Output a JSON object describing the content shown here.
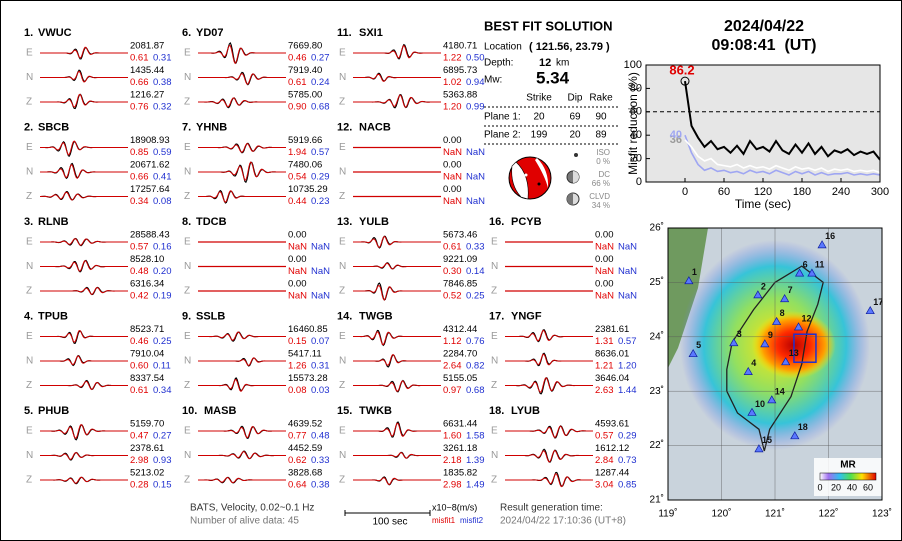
{
  "components": [
    "E",
    "N",
    "Z"
  ],
  "stations": [
    {
      "number": "1.",
      "name": "VWUC",
      "traces": [
        [
          "2081.87",
          "0.61",
          "0.31"
        ],
        [
          "1435.44",
          "0.66",
          "0.38"
        ],
        [
          "1216.27",
          "0.76",
          "0.32"
        ]
      ]
    },
    {
      "number": "2.",
      "name": "SBCB",
      "traces": [
        [
          "18908.93",
          "0.85",
          "0.59"
        ],
        [
          "20671.62",
          "0.66",
          "0.41"
        ],
        [
          "17257.64",
          "0.34",
          "0.08"
        ]
      ]
    },
    {
      "number": "3.",
      "name": "RLNB",
      "traces": [
        [
          "28588.43",
          "0.57",
          "0.16"
        ],
        [
          "8528.10",
          "0.48",
          "0.20"
        ],
        [
          "6316.34",
          "0.42",
          "0.19"
        ]
      ]
    },
    {
      "number": "4.",
      "name": "TPUB",
      "traces": [
        [
          "8523.71",
          "0.46",
          "0.25"
        ],
        [
          "7910.04",
          "0.60",
          "0.11"
        ],
        [
          "8337.54",
          "0.61",
          "0.34"
        ]
      ]
    },
    {
      "number": "5.",
      "name": "PHUB",
      "traces": [
        [
          "5159.70",
          "0.47",
          "0.27"
        ],
        [
          "2378.61",
          "2.98",
          "0.93"
        ],
        [
          "5213.02",
          "0.28",
          "0.15"
        ]
      ]
    },
    {
      "number": "6.",
      "name": "YD07",
      "traces": [
        [
          "7669.80",
          "0.46",
          "0.27"
        ],
        [
          "7919.40",
          "0.61",
          "0.24"
        ],
        [
          "5785.00",
          "0.90",
          "0.68"
        ]
      ]
    },
    {
      "number": "7.",
      "name": "YHNB",
      "traces": [
        [
          "5919.66",
          "1.94",
          "0.57"
        ],
        [
          "7480.06",
          "0.54",
          "0.29"
        ],
        [
          "10735.29",
          "0.44",
          "0.23"
        ]
      ]
    },
    {
      "number": "8.",
      "name": "TDCB",
      "traces": [
        [
          "0.00",
          "NaN",
          "NaN"
        ],
        [
          "0.00",
          "NaN",
          "NaN"
        ],
        [
          "0.00",
          "NaN",
          "NaN"
        ]
      ]
    },
    {
      "number": "9.",
      "name": "SSLB",
      "traces": [
        [
          "16460.85",
          "0.15",
          "0.07"
        ],
        [
          "5417.11",
          "1.26",
          "0.31"
        ],
        [
          "15573.28",
          "0.08",
          "0.03"
        ]
      ]
    },
    {
      "number": "10.",
      "name": "MASB",
      "traces": [
        [
          "4639.52",
          "0.77",
          "0.48"
        ],
        [
          "4452.59",
          "0.62",
          "0.33"
        ],
        [
          "3828.68",
          "0.64",
          "0.38"
        ]
      ]
    },
    {
      "number": "11.",
      "name": "SXI1",
      "traces": [
        [
          "4180.71",
          "1.22",
          "0.50"
        ],
        [
          "6895.73",
          "1.02",
          "0.94"
        ],
        [
          "5363.88",
          "1.20",
          "0.99"
        ]
      ]
    },
    {
      "number": "12.",
      "name": "NACB",
      "traces": [
        [
          "0.00",
          "NaN",
          "NaN"
        ],
        [
          "0.00",
          "NaN",
          "NaN"
        ],
        [
          "0.00",
          "NaN",
          "NaN"
        ]
      ]
    },
    {
      "number": "13.",
      "name": "YULB",
      "traces": [
        [
          "5673.46",
          "0.61",
          "0.33"
        ],
        [
          "9221.09",
          "0.30",
          "0.14"
        ],
        [
          "7846.85",
          "0.52",
          "0.25"
        ]
      ]
    },
    {
      "number": "14.",
      "name": "TWGB",
      "traces": [
        [
          "4312.44",
          "1.12",
          "0.76"
        ],
        [
          "2284.70",
          "2.64",
          "0.82"
        ],
        [
          "5155.05",
          "0.97",
          "0.68"
        ]
      ]
    },
    {
      "number": "15.",
      "name": "TWKB",
      "traces": [
        [
          "6631.44",
          "1.60",
          "1.58"
        ],
        [
          "3261.18",
          "2.18",
          "1.39"
        ],
        [
          "1835.82",
          "2.98",
          "1.49"
        ]
      ]
    },
    {
      "number": "16.",
      "name": "PCYB",
      "traces": [
        [
          "0.00",
          "NaN",
          "NaN"
        ],
        [
          "0.00",
          "NaN",
          "NaN"
        ],
        [
          "0.00",
          "NaN",
          "NaN"
        ]
      ]
    },
    {
      "number": "17.",
      "name": "YNGF",
      "traces": [
        [
          "2381.61",
          "1.31",
          "0.57"
        ],
        [
          "8636.01",
          "1.21",
          "1.20"
        ],
        [
          "3646.04",
          "2.63",
          "1.44"
        ]
      ]
    },
    {
      "number": "18.",
      "name": "LYUB",
      "traces": [
        [
          "4593.61",
          "0.57",
          "0.29"
        ],
        [
          "1612.12",
          "2.84",
          "0.73"
        ],
        [
          "1287.44",
          "3.04",
          "0.85"
        ]
      ]
    }
  ],
  "solution": {
    "title": "BEST FIT SOLUTION",
    "location_label": "Location",
    "location": "( 121.56, 23.79 )",
    "depth_label": "Depth:",
    "depth": "12",
    "depth_unit": "km",
    "mw_label": "Mw:",
    "mw": "5.34",
    "plane_header": [
      "Strike",
      "Dip",
      "Rake"
    ],
    "planes": [
      {
        "label": "Plane 1:",
        "values": [
          "20",
          "69",
          "90"
        ]
      },
      {
        "label": "Plane 2:",
        "values": [
          "199",
          "20",
          "89"
        ]
      }
    ],
    "decomposition": [
      {
        "name": "ISO",
        "percent": "0 %"
      },
      {
        "name": "DC",
        "percent": "66 %"
      },
      {
        "name": "CLVD",
        "percent": "34 %"
      }
    ]
  },
  "event_time": {
    "date": "2024/04/22",
    "time": "09:08:41  (UT)"
  },
  "chart_data": {
    "type": "line",
    "ylabel": "Misfit reduction (%)",
    "xlabel": "Time (sec)",
    "x": [
      0,
      10,
      20,
      30,
      40,
      50,
      60,
      70,
      80,
      90,
      100,
      110,
      120,
      130,
      140,
      150,
      160,
      170,
      180,
      190,
      200,
      210,
      220,
      230,
      240,
      250,
      260,
      270,
      280,
      290,
      300
    ],
    "series": [
      {
        "color": "#000000",
        "values": [
          86.2,
          48,
          38,
          30,
          35,
          28,
          30,
          25,
          31,
          24,
          35,
          28,
          30,
          26,
          35,
          27,
          24,
          32,
          25,
          33,
          24,
          30,
          22,
          27,
          25,
          28,
          23,
          26,
          24,
          26,
          19
        ]
      },
      {
        "color": "#ffffff",
        "values": [
          36,
          30,
          22,
          18,
          20,
          15,
          14,
          13,
          15,
          12,
          14,
          12,
          13,
          11,
          14,
          12,
          10,
          13,
          11,
          12,
          10,
          12,
          9,
          11,
          10,
          11,
          9,
          10,
          9,
          10,
          8
        ]
      },
      {
        "color": "#9fa6f2",
        "values": [
          40,
          25,
          15,
          10,
          12,
          9,
          10,
          8,
          9,
          7,
          10,
          8,
          9,
          7,
          10,
          8,
          6,
          9,
          7,
          9,
          6,
          8,
          6,
          7,
          7,
          8,
          6,
          7,
          6,
          7,
          6
        ]
      }
    ],
    "xlim": [
      -60,
      300
    ],
    "ylim": [
      0,
      100
    ],
    "xticks": [
      0,
      60,
      120,
      180,
      240,
      300
    ],
    "yticks": [
      0,
      20,
      40,
      60,
      80,
      100
    ],
    "reference_line": 60
  },
  "map": {
    "lonlim": [
      119,
      123
    ],
    "latlim": [
      21,
      26
    ],
    "lonticks": [
      {
        "value": 119,
        "label": "119˚"
      },
      {
        "value": 120,
        "label": "120˚"
      },
      {
        "value": 121,
        "label": "121˚"
      },
      {
        "value": 122,
        "label": "122˚"
      },
      {
        "value": 123,
        "label": "123˚"
      }
    ],
    "latticks": [
      {
        "value": 21,
        "label": "21˚"
      },
      {
        "value": 22,
        "label": "22˚"
      },
      {
        "value": 23,
        "label": "23˚"
      },
      {
        "value": 24,
        "label": "24˚"
      },
      {
        "value": 25,
        "label": "25˚"
      },
      {
        "value": 26,
        "label": "26˚"
      }
    ],
    "epicenter": [
      121.56,
      23.79
    ],
    "stations": [
      {
        "label": "1",
        "lon": 119.39,
        "lat": 25.03
      },
      {
        "label": "2",
        "lon": 120.68,
        "lat": 24.77
      },
      {
        "label": "3",
        "lon": 120.23,
        "lat": 23.89
      },
      {
        "label": "4",
        "lon": 120.5,
        "lat": 23.36
      },
      {
        "label": "5",
        "lon": 119.47,
        "lat": 23.69
      },
      {
        "label": "6",
        "lon": 121.46,
        "lat": 25.17
      },
      {
        "label": "7",
        "lon": 121.18,
        "lat": 24.7
      },
      {
        "label": "8",
        "lon": 121.03,
        "lat": 24.28
      },
      {
        "label": "9",
        "lon": 120.81,
        "lat": 23.87
      },
      {
        "label": "10",
        "lon": 120.57,
        "lat": 22.61
      },
      {
        "label": "11",
        "lon": 121.69,
        "lat": 25.17
      },
      {
        "label": "12",
        "lon": 121.44,
        "lat": 24.18
      },
      {
        "label": "13",
        "lon": 121.2,
        "lat": 23.54
      },
      {
        "label": "14",
        "lon": 120.94,
        "lat": 22.84
      },
      {
        "label": "15",
        "lon": 120.7,
        "lat": 21.94
      },
      {
        "label": "16",
        "lon": 121.88,
        "lat": 25.69
      },
      {
        "label": "17",
        "lon": 122.78,
        "lat": 24.48
      },
      {
        "label": "18",
        "lon": 121.37,
        "lat": 22.18
      }
    ],
    "colorbar": {
      "title": "MR",
      "lim": [
        0,
        70
      ],
      "ticks": [
        0,
        20,
        40,
        60
      ]
    }
  },
  "footer": {
    "data_info": "BATS, Velocity, 0.02~0.1 Hz",
    "alive": "Number of alive data: 45",
    "scale": "100 sec",
    "unit": "x10−8(m/s)",
    "misfit1": "misfit1",
    "misfit2": "misfit2",
    "generated_label": "Result generation time:",
    "generated": "2024/04/22 17:10:36 (UT+8)"
  }
}
